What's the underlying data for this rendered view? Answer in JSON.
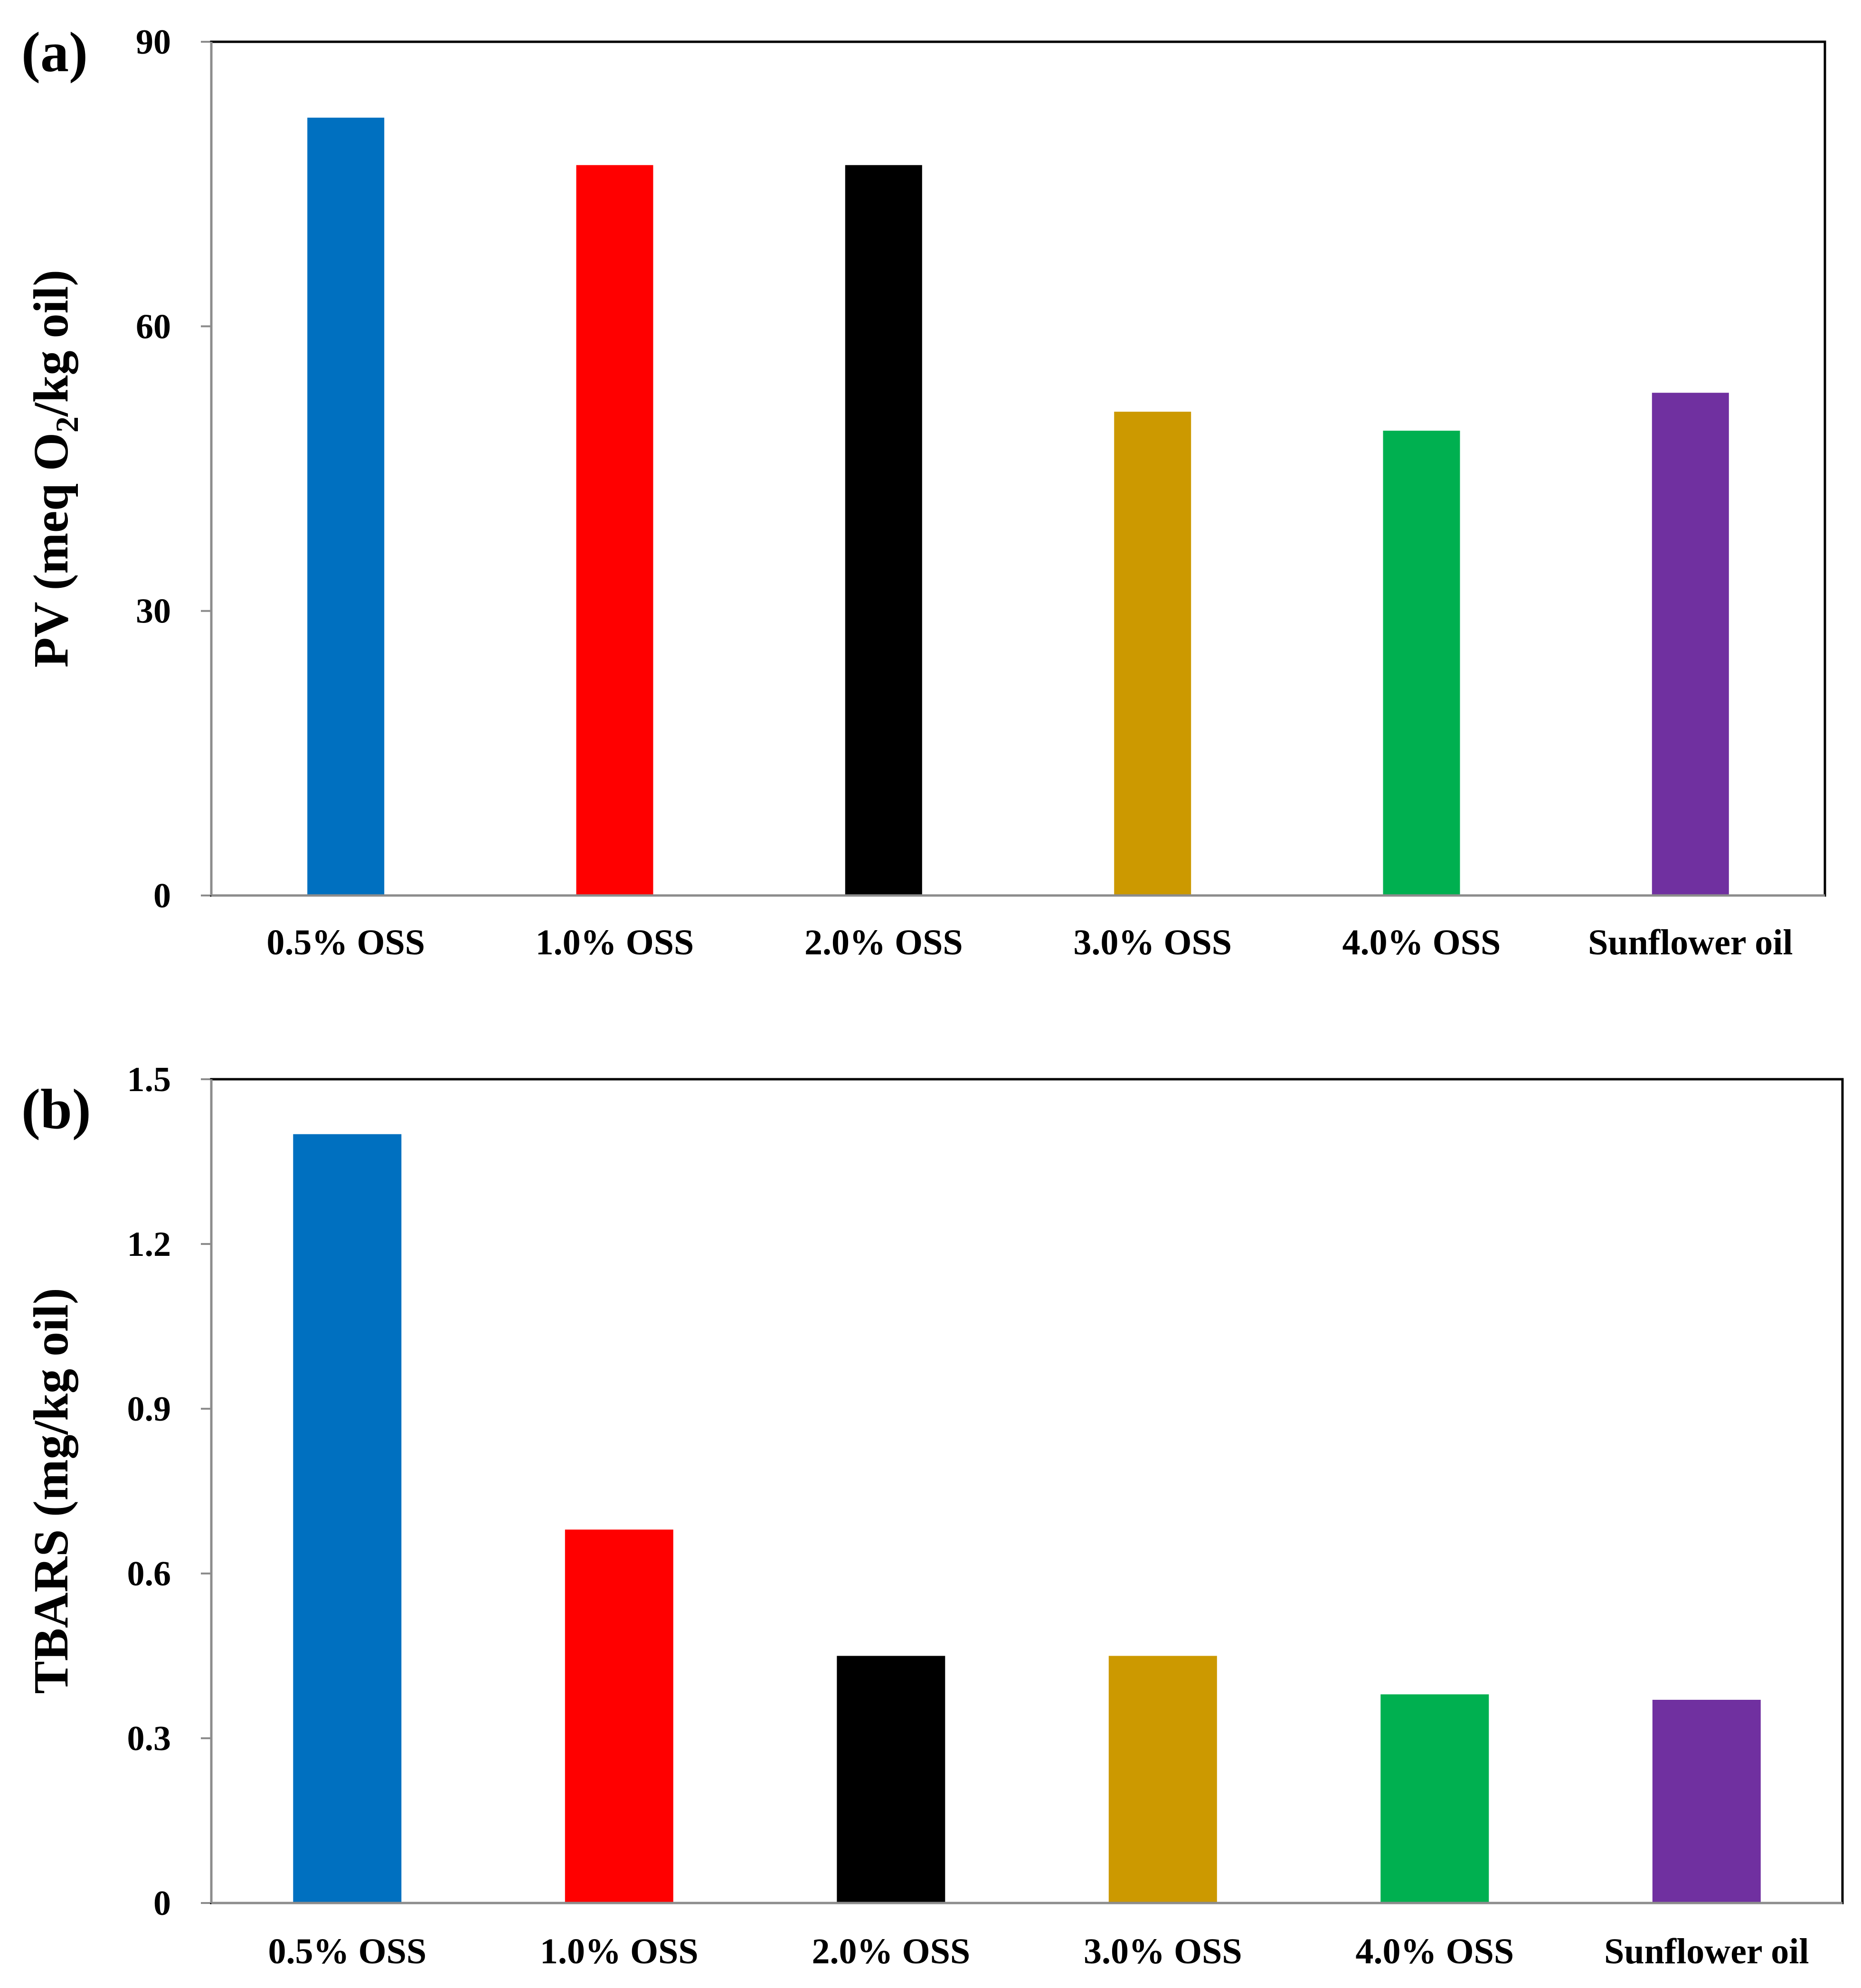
{
  "chart_data": [
    {
      "type": "bar",
      "panel_label": "(a)",
      "categories": [
        "0.5% OSS",
        "1.0% OSS",
        "2.0% OSS",
        "3.0% OSS",
        "4.0% OSS",
        "Sunflower oil"
      ],
      "values": [
        82,
        77,
        77,
        51,
        49,
        53
      ],
      "colors": [
        "#0070c0",
        "#ff0000",
        "#000000",
        "#cc9900",
        "#00b050",
        "#7030a0"
      ],
      "ylabel_parts": [
        "PV (meq O",
        "2",
        "/kg oil)"
      ],
      "ylim": [
        0,
        90
      ],
      "yticks": [
        0,
        30,
        60,
        90
      ],
      "ytick_labels": [
        "0",
        "30",
        "60",
        "90"
      ],
      "grid": false,
      "legend": "none"
    },
    {
      "type": "bar",
      "panel_label": "(b)",
      "categories": [
        "0.5% OSS",
        "1.0% OSS",
        "2.0% OSS",
        "3.0% OSS",
        "4.0% OSS",
        "Sunflower oil"
      ],
      "values": [
        1.4,
        0.68,
        0.45,
        0.45,
        0.38,
        0.37
      ],
      "colors": [
        "#0070c0",
        "#ff0000",
        "#000000",
        "#cc9900",
        "#00b050",
        "#7030a0"
      ],
      "ylabel": "TBARS (mg/kg oil)",
      "ylim": [
        0,
        1.5
      ],
      "yticks": [
        0,
        0.3,
        0.6,
        0.9,
        1.2,
        1.5
      ],
      "ytick_labels": [
        "0",
        "0.3",
        "0.6",
        "0.9",
        "1.2",
        "1.5"
      ],
      "grid": false,
      "legend": "none"
    }
  ]
}
